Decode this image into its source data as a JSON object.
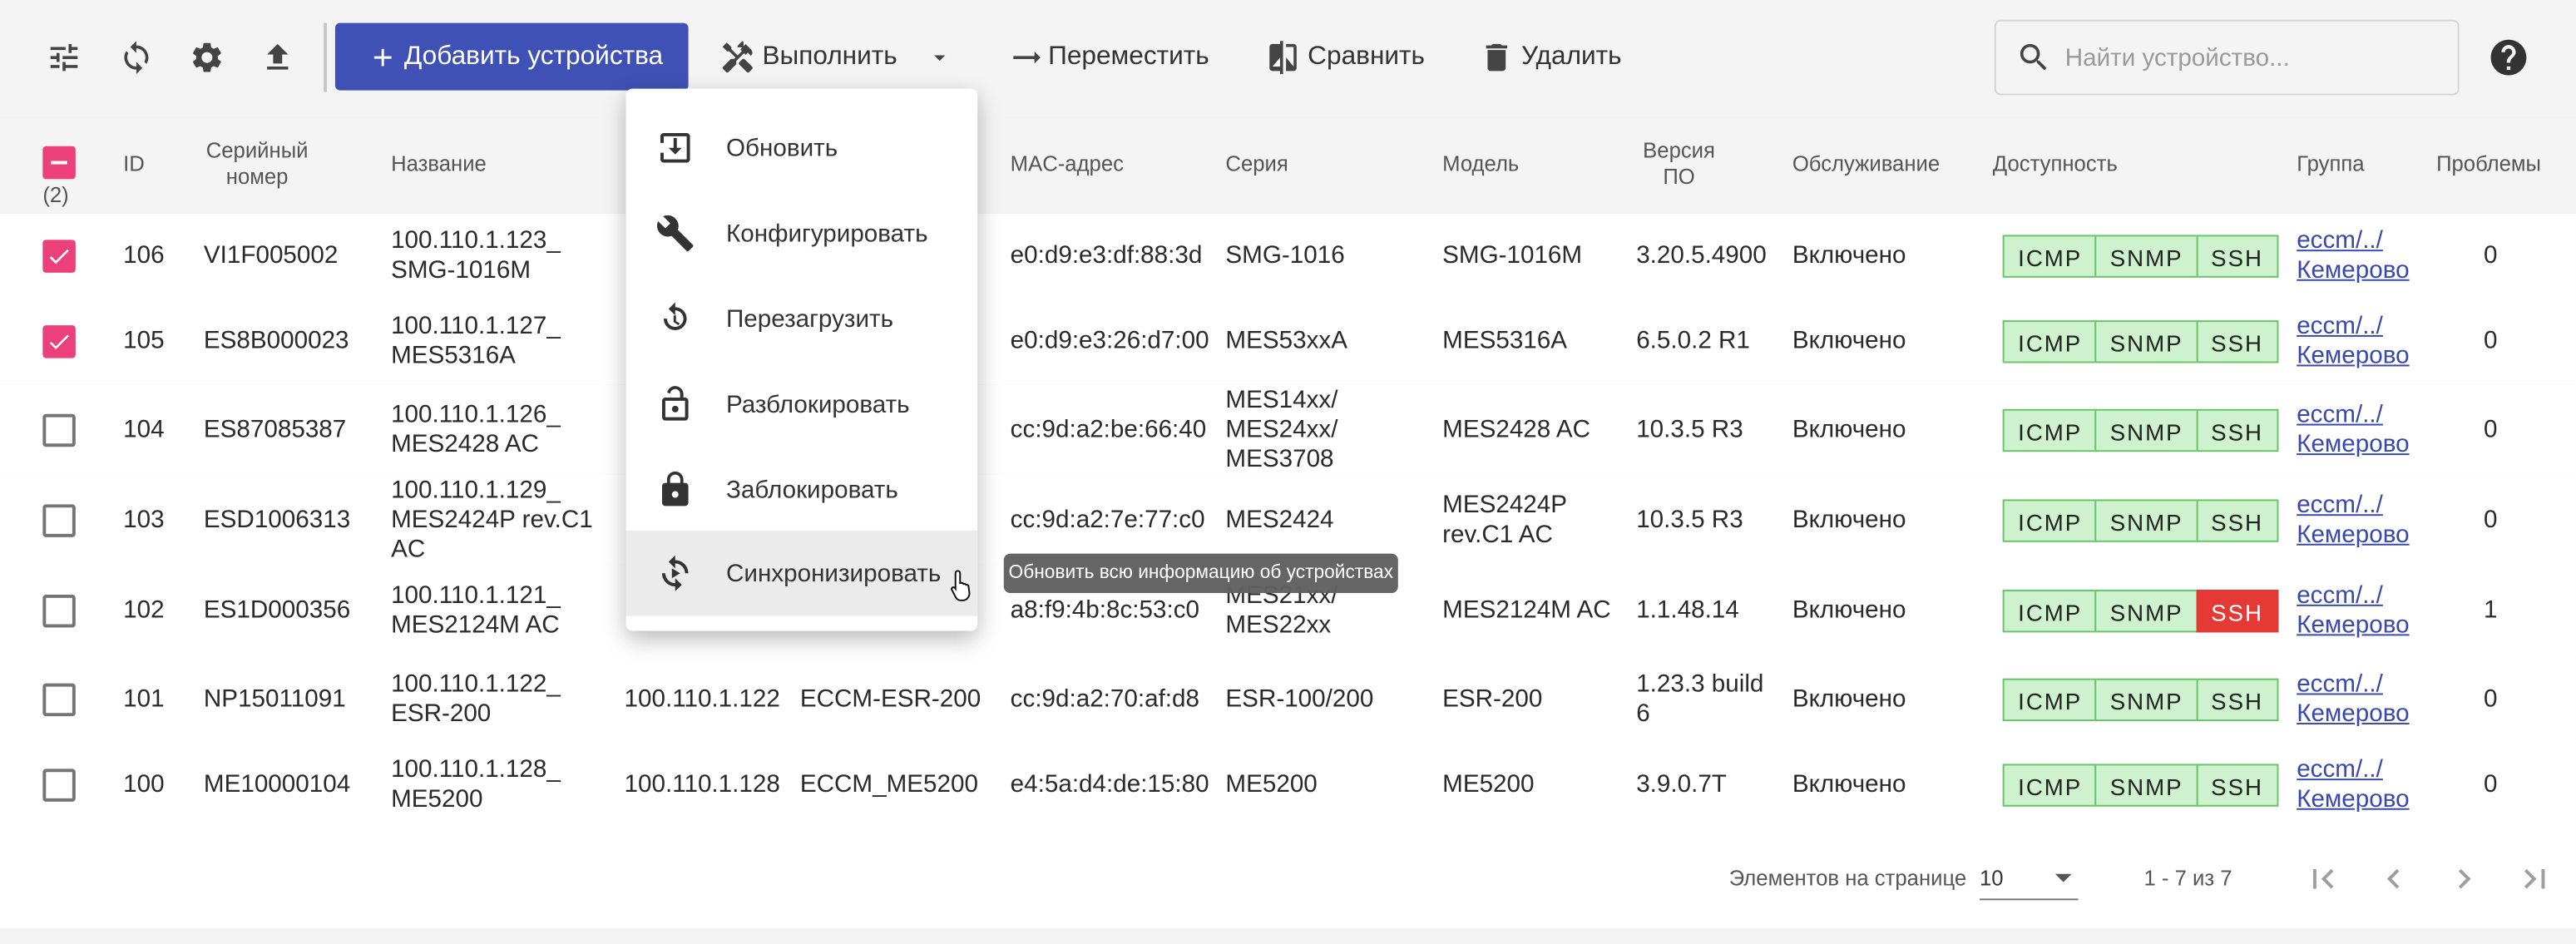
{
  "toolbar": {
    "add_button": "Добавить устройства",
    "execute": "Выполнить",
    "move": "Переместить",
    "compare": "Сравнить",
    "delete": "Удалить",
    "search_placeholder": "Найти устройство..."
  },
  "table": {
    "selected_count": "(2)",
    "headers": {
      "id": "ID",
      "serial": [
        "Серийный",
        "номер"
      ],
      "name": "Название",
      "mac": "MAC-адрес",
      "series": "Серия",
      "model": "Модель",
      "fw": [
        "Версия",
        "ПО"
      ],
      "service": "Обслуживание",
      "availability": "Доступность",
      "group": "Группа",
      "problems": "Проблемы"
    },
    "rows": [
      {
        "selected": true,
        "id": "106",
        "serial": "VI1F005002",
        "name": [
          "100.110.1.123_",
          "SMG-1016M"
        ],
        "mac": "e0:d9:e3:df:88:3d",
        "series": "SMG-1016",
        "model": "SMG-1016M",
        "fw": "3.20.5.4900",
        "service": "Включено",
        "availability": [
          {
            "label": "ICMP",
            "ok": true
          },
          {
            "label": "SNMP",
            "ok": true
          },
          {
            "label": "SSH",
            "ok": true
          }
        ],
        "group": [
          "eccm/../",
          "Кемерово"
        ],
        "problems": 0
      },
      {
        "selected": true,
        "id": "105",
        "serial": "ES8B000023",
        "name": [
          "100.110.1.127_",
          "MES5316A"
        ],
        "mac": "e0:d9:e3:26:d7:00",
        "series": "MES53xxA",
        "model": "MES5316A",
        "fw": "6.5.0.2 R1",
        "service": "Включено",
        "availability": [
          {
            "label": "ICMP",
            "ok": true
          },
          {
            "label": "SNMP",
            "ok": true
          },
          {
            "label": "SSH",
            "ok": true
          }
        ],
        "group": [
          "eccm/../",
          "Кемерово"
        ],
        "problems": 0
      },
      {
        "selected": false,
        "id": "104",
        "serial": "ES87085387",
        "name": [
          "100.110.1.126_",
          "MES2428 AC"
        ],
        "mac": "cc:9d:a2:be:66:40",
        "series": [
          "MES14xx/",
          "MES24xx/",
          "MES3708"
        ],
        "model": "MES2428 AC",
        "fw": "10.3.5 R3",
        "service": "Включено",
        "availability": [
          {
            "label": "ICMP",
            "ok": true
          },
          {
            "label": "SNMP",
            "ok": true
          },
          {
            "label": "SSH",
            "ok": true
          }
        ],
        "group": [
          "eccm/../",
          "Кемерово"
        ],
        "problems": 0
      },
      {
        "selected": false,
        "id": "103",
        "serial": "ESD1006313",
        "name": [
          "100.110.1.129_",
          "MES2424P rev.C1",
          "AC"
        ],
        "mac": "cc:9d:a2:7e:77:c0",
        "series": "MES2424",
        "model": [
          "MES2424P",
          "rev.C1 AC"
        ],
        "fw": "10.3.5 R3",
        "service": "Включено",
        "availability": [
          {
            "label": "ICMP",
            "ok": true
          },
          {
            "label": "SNMP",
            "ok": true
          },
          {
            "label": "SSH",
            "ok": true
          }
        ],
        "group": [
          "eccm/../",
          "Кемерово"
        ],
        "problems": 0
      },
      {
        "selected": false,
        "id": "102",
        "serial": "ES1D000356",
        "name": [
          "100.110.1.121_",
          "MES2124M AC"
        ],
        "mac": "a8:f9:4b:8c:53:c0",
        "series": [
          "MES21xx/",
          "MES22xx"
        ],
        "model": "MES2124M AC",
        "fw": "1.1.48.14",
        "service": "Включено",
        "availability": [
          {
            "label": "ICMP",
            "ok": true
          },
          {
            "label": "SNMP",
            "ok": true
          },
          {
            "label": "SSH",
            "ok": false
          }
        ],
        "group": [
          "eccm/../",
          "Кемерово"
        ],
        "problems": 1
      },
      {
        "selected": false,
        "id": "101",
        "serial": "NP15011091",
        "name": [
          "100.110.1.122_",
          "ESR-200"
        ],
        "ip": "100.110.1.122",
        "name2": "ECCM-ESR-200",
        "mac": "cc:9d:a2:70:af:d8",
        "series": "ESR-100/200",
        "model": "ESR-200",
        "fw": [
          "1.23.3 build",
          "6"
        ],
        "service": "Включено",
        "availability": [
          {
            "label": "ICMP",
            "ok": true
          },
          {
            "label": "SNMP",
            "ok": true
          },
          {
            "label": "SSH",
            "ok": true
          }
        ],
        "group": [
          "eccm/../",
          "Кемерово"
        ],
        "problems": 0
      },
      {
        "selected": false,
        "id": "100",
        "serial": "ME10000104",
        "name": [
          "100.110.1.128_",
          "ME5200"
        ],
        "ip": "100.110.1.128",
        "name2": "ECCM_ME5200",
        "mac": "e4:5a:d4:de:15:80",
        "series": "ME5200",
        "model": "ME5200",
        "fw": "3.9.0.7T",
        "service": "Включено",
        "availability": [
          {
            "label": "ICMP",
            "ok": true
          },
          {
            "label": "SNMP",
            "ok": true
          },
          {
            "label": "SSH",
            "ok": true
          }
        ],
        "group": [
          "eccm/../",
          "Кемерово"
        ],
        "problems": 0
      }
    ]
  },
  "menu": {
    "items": [
      "Обновить",
      "Конфигурировать",
      "Перезагрузить",
      "Разблокировать",
      "Заблокировать",
      "Синхронизировать"
    ]
  },
  "tooltip": "Обновить всю информацию об устройствах",
  "paginator": {
    "page_size_label": "Элементов на странице",
    "page_size": "10",
    "range": "1 - 7 из 7"
  }
}
